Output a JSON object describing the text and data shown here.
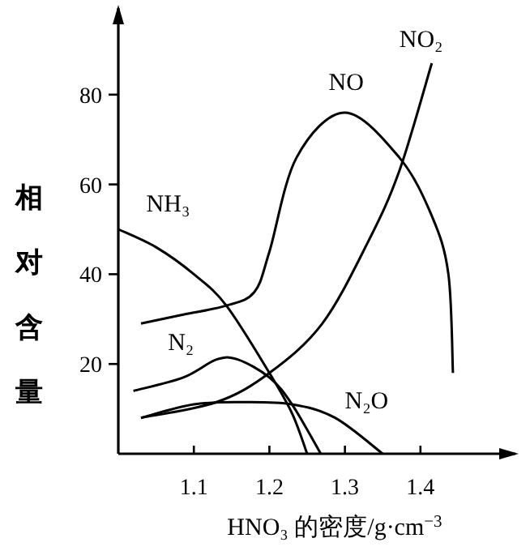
{
  "chart_data": {
    "type": "line",
    "xlabel": "HNO₃ 的密度/g·cm$^{−3}$",
    "ylabel": "相对含量",
    "xlim": [
      1.0,
      1.53
    ],
    "ylim": [
      0,
      100
    ],
    "xticks": [
      1.1,
      1.2,
      1.3,
      1.4
    ],
    "yticks": [
      20,
      40,
      60,
      80
    ],
    "grid": false,
    "marker": "none",
    "line_style": "solid",
    "series": [
      {
        "name": "NH₃",
        "color": "#000000",
        "x": [
          1.0,
          1.05,
          1.1,
          1.143,
          1.2,
          1.23,
          1.25
        ],
        "values": [
          50,
          46,
          40,
          33,
          18,
          9,
          0
        ]
      },
      {
        "name": "NO",
        "color": "#000000",
        "x": [
          1.03,
          1.086,
          1.143,
          1.18,
          1.2,
          1.236,
          1.3,
          1.372,
          1.415,
          1.437,
          1.443
        ],
        "values": [
          29,
          31,
          33,
          36,
          45,
          66,
          76,
          66,
          53,
          40,
          18
        ]
      },
      {
        "name": "NO₂",
        "color": "#000000",
        "x": [
          1.03,
          1.13,
          1.2,
          1.27,
          1.33,
          1.372,
          1.415
        ],
        "values": [
          8,
          11.5,
          18,
          29,
          47,
          63,
          87
        ]
      },
      {
        "name": "N₂",
        "color": "#000000",
        "x": [
          1.02,
          1.086,
          1.13,
          1.158,
          1.2,
          1.23,
          1.268
        ],
        "values": [
          14,
          17,
          21,
          21,
          17,
          11,
          0
        ]
      },
      {
        "name": "N₂O",
        "color": "#000000",
        "x": [
          1.03,
          1.1,
          1.165,
          1.23,
          1.287,
          1.35
        ],
        "values": [
          8,
          11,
          11.5,
          11,
          8,
          0
        ]
      }
    ]
  }
}
